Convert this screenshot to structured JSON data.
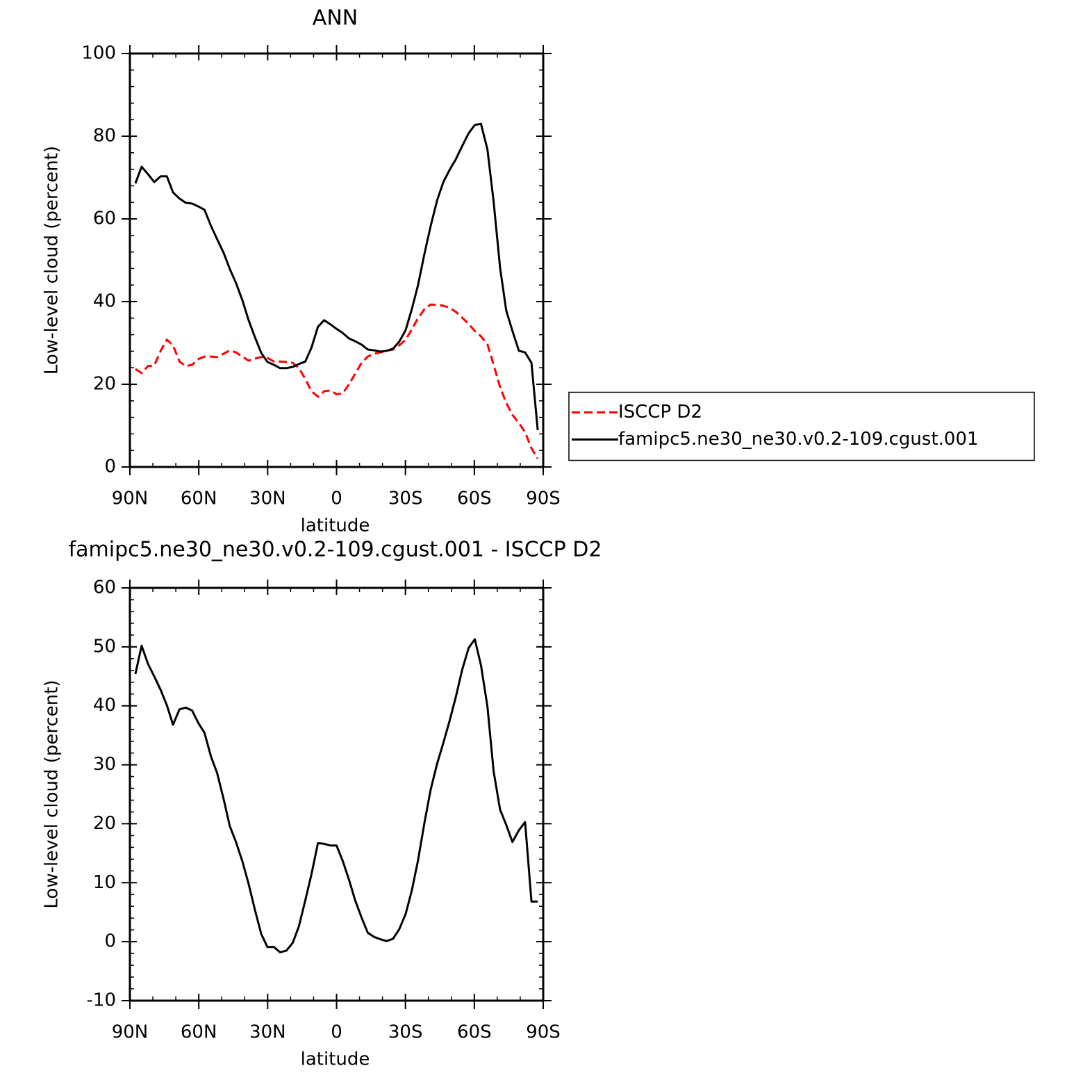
{
  "chart_data": [
    {
      "type": "line",
      "title": "ANN",
      "xlabel": "latitude",
      "ylabel": "Low-level cloud (percent)",
      "x": [
        87.6,
        84.9,
        82.1,
        79.4,
        76.6,
        73.9,
        71.2,
        68.4,
        65.7,
        62.9,
        60.2,
        57.5,
        54.7,
        52.0,
        49.2,
        46.5,
        43.8,
        41.0,
        38.3,
        35.5,
        32.8,
        30.1,
        27.3,
        24.6,
        21.8,
        19.1,
        16.4,
        13.6,
        10.9,
        8.1,
        5.4,
        2.7,
        0,
        -2.7,
        -5.4,
        -8.1,
        -10.9,
        -13.6,
        -16.4,
        -19.1,
        -21.8,
        -24.6,
        -27.3,
        -30.1,
        -32.8,
        -35.5,
        -38.3,
        -41.0,
        -43.8,
        -46.5,
        -49.2,
        -52.0,
        -54.7,
        -57.5,
        -60.2,
        -62.9,
        -65.7,
        -68.4,
        -71.2,
        -73.9,
        -76.6,
        -79.4,
        -82.1,
        -84.9,
        -87.6
      ],
      "series": [
        {
          "name": "ISCCP D2",
          "color": "#ff0000",
          "line_style": "dashed",
          "values": [
            23.7,
            22.7,
            24.4,
            24.5,
            28.1,
            30.8,
            29.4,
            25.5,
            24.4,
            24.7,
            26.1,
            26.7,
            26.7,
            26.6,
            27.4,
            28.2,
            27.7,
            26.7,
            25.7,
            26.2,
            26.6,
            26.4,
            25.5,
            25.5,
            25.4,
            25.2,
            23.9,
            21.3,
            18.3,
            17.0,
            18.3,
            18.5,
            17.6,
            17.8,
            20.0,
            22.5,
            25.2,
            26.7,
            27.4,
            27.7,
            28.1,
            28.4,
            29.4,
            30.8,
            33.3,
            36.0,
            38.2,
            39.3,
            39.2,
            39.0,
            38.5,
            37.5,
            36.1,
            34.6,
            32.9,
            31.6,
            29.7,
            24.7,
            19.3,
            15.5,
            12.6,
            10.6,
            8.4,
            4.5,
            2.0
          ]
        },
        {
          "name": "famipc5.ne30_ne30.v0.2-109.cgust.001",
          "color": "#000000",
          "line_style": "solid",
          "values": [
            68.6,
            72.6,
            70.8,
            68.9,
            70.3,
            70.3,
            66.4,
            64.9,
            63.9,
            63.7,
            63.0,
            62.2,
            58.3,
            55.1,
            51.8,
            47.9,
            44.5,
            40.3,
            35.5,
            31.3,
            27.6,
            25.4,
            24.7,
            23.9,
            23.9,
            24.2,
            24.9,
            25.5,
            28.9,
            33.9,
            35.5,
            34.5,
            33.4,
            32.4,
            31.1,
            30.4,
            29.6,
            28.4,
            28.2,
            27.9,
            28.1,
            28.6,
            30.3,
            33.1,
            38.2,
            44.0,
            51.6,
            58.3,
            64.5,
            68.9,
            71.8,
            74.5,
            77.6,
            80.7,
            82.7,
            83.0,
            76.8,
            64.2,
            48.2,
            37.8,
            32.9,
            28.1,
            27.7,
            25.2,
            8.9
          ]
        }
      ],
      "xlim": [
        90,
        -90
      ],
      "xticks": [
        {
          "value": 90,
          "label": "90N"
        },
        {
          "value": 60,
          "label": "60N"
        },
        {
          "value": 30,
          "label": "30N"
        },
        0,
        {
          "value": -30,
          "label": "30S"
        },
        {
          "value": -60,
          "label": "60S"
        },
        {
          "value": -90,
          "label": "90S"
        }
      ],
      "ylim": [
        0,
        100
      ],
      "yticks": [
        0,
        20,
        40,
        60,
        80,
        100
      ],
      "legend": "right"
    },
    {
      "type": "line",
      "title": "famipc5.ne30_ne30.v0.2-109.cgust.001 - ISCCP D2",
      "xlabel": "latitude",
      "ylabel": "Low-level cloud (percent)",
      "x": [
        87.6,
        84.9,
        82.1,
        79.4,
        76.6,
        73.9,
        71.2,
        68.4,
        65.7,
        62.9,
        60.2,
        57.5,
        54.7,
        52.0,
        49.2,
        46.5,
        43.8,
        41.0,
        38.3,
        35.5,
        32.8,
        30.1,
        27.3,
        24.6,
        21.8,
        19.1,
        16.4,
        13.6,
        10.9,
        8.1,
        5.4,
        2.7,
        0,
        -2.7,
        -5.4,
        -8.1,
        -10.9,
        -13.6,
        -16.4,
        -19.1,
        -21.8,
        -24.6,
        -27.3,
        -30.1,
        -32.8,
        -35.5,
        -38.3,
        -41.0,
        -43.8,
        -46.5,
        -49.2,
        -52.0,
        -54.7,
        -57.5,
        -60.2,
        -62.9,
        -65.7,
        -68.4,
        -71.2,
        -73.9,
        -76.6,
        -79.4,
        -82.1,
        -84.9,
        -87.6
      ],
      "series": [
        {
          "color": "#000000",
          "line_style": "solid",
          "values": [
            45.4,
            50.2,
            47.1,
            45.0,
            42.7,
            40.1,
            36.8,
            39.4,
            39.7,
            39.2,
            37.1,
            35.4,
            31.4,
            28.6,
            24.2,
            19.6,
            16.9,
            13.6,
            9.8,
            5.3,
            1.3,
            -0.9,
            -0.9,
            -1.8,
            -1.5,
            -0.2,
            2.6,
            7.0,
            11.5,
            16.7,
            16.6,
            16.3,
            16.3,
            13.7,
            10.5,
            7.0,
            4.1,
            1.5,
            0.8,
            0.4,
            0.1,
            0.5,
            2.1,
            4.7,
            8.7,
            13.8,
            20.2,
            25.8,
            30.2,
            33.7,
            37.4,
            41.6,
            46.1,
            49.8,
            51.3,
            46.9,
            39.9,
            28.9,
            22.4,
            19.8,
            16.9,
            18.9,
            20.3,
            6.8,
            6.8
          ]
        }
      ],
      "xlim": [
        90,
        -90
      ],
      "xticks": [
        {
          "value": 90,
          "label": "90N"
        },
        {
          "value": 60,
          "label": "60N"
        },
        {
          "value": 30,
          "label": "30N"
        },
        0,
        {
          "value": -30,
          "label": "30S"
        },
        {
          "value": -60,
          "label": "60S"
        },
        {
          "value": -90,
          "label": "90S"
        }
      ],
      "ylim": [
        -10,
        60
      ],
      "yticks": [
        -10,
        0,
        10,
        20,
        30,
        40,
        50,
        60
      ]
    }
  ]
}
